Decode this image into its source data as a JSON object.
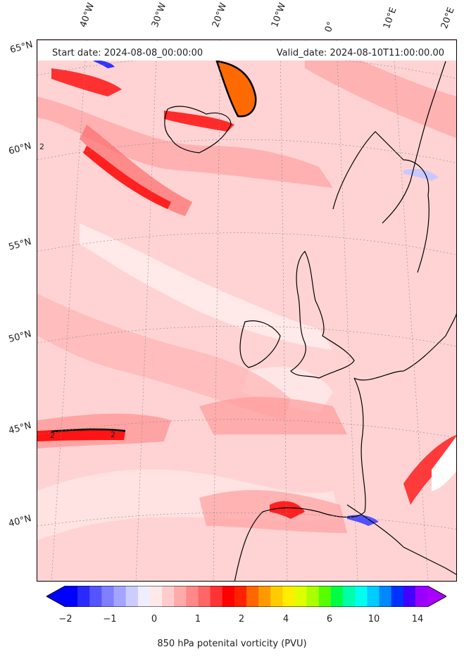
{
  "map": {
    "start_date": "Start date: 2024-08-08_00:00:00",
    "valid_date": "Valid_date: 2024-08-10T11:00:00.00",
    "lon_labels": [
      "40°W",
      "30°W",
      "20°W",
      "10°W",
      "0°",
      "10°E",
      "20°E"
    ],
    "lat_labels": [
      "65°N",
      "60°N",
      "55°N",
      "50°N",
      "45°N",
      "40°N"
    ],
    "contour_labels": [
      "2",
      "2",
      "2"
    ]
  },
  "colorbar": {
    "title": "850 hPa potenital vorticity (PVU)",
    "ticks": [
      "−2",
      "−1",
      "0",
      "1",
      "2",
      "4",
      "6",
      "10",
      "14"
    ],
    "colors": [
      "#0000ff",
      "#2a2aff",
      "#5555ff",
      "#7f7fff",
      "#a5a5ff",
      "#ccccff",
      "#eeeeff",
      "#ffe8e8",
      "#ffcccc",
      "#ffaaaa",
      "#ff8888",
      "#ff6666",
      "#ff3333",
      "#ff0000",
      "#ff2200",
      "#ff6600",
      "#ff9900",
      "#ffcc00",
      "#ffee00",
      "#ddff00",
      "#aaff00",
      "#55ff00",
      "#00ff44",
      "#00ffaa",
      "#00ffee",
      "#00ccff",
      "#0088ff",
      "#0033ff",
      "#4400ff",
      "#9900ff"
    ],
    "low_color": "#0000ff",
    "high_color": "#aa00ff"
  }
}
